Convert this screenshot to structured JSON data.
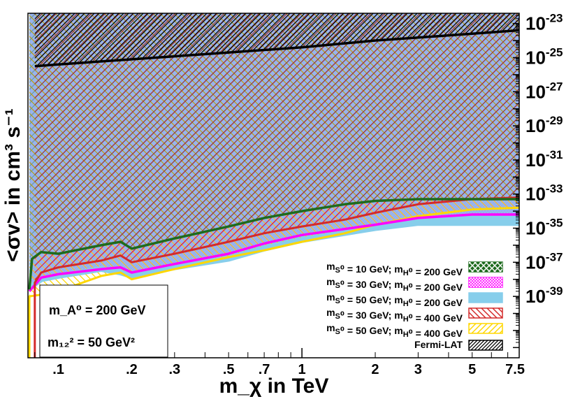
{
  "chart_data": {
    "type": "area",
    "title": "",
    "xlabel": "m_χ in TeV",
    "ylabel": "<σv> in cm³ s⁻¹",
    "x_scale": "log",
    "y_scale": "log",
    "xlim": [
      0.075,
      7.8
    ],
    "ylim": [
      -42.6,
      -22.4
    ],
    "x_ticks": [
      {
        "value": 0.1,
        "label": ".1"
      },
      {
        "value": 0.2,
        "label": ".2"
      },
      {
        "value": 0.3,
        "label": ".3"
      },
      {
        "value": 0.5,
        "label": ".5"
      },
      {
        "value": 0.7,
        "label": ".7"
      },
      {
        "value": 1,
        "label": "1"
      },
      {
        "value": 2,
        "label": "2"
      },
      {
        "value": 3,
        "label": "3"
      },
      {
        "value": 5,
        "label": "5"
      },
      {
        "value": 7.5,
        "label": "7.5"
      }
    ],
    "y_ticks": [
      {
        "exp": -23,
        "base": "10",
        "sup": "-23"
      },
      {
        "exp": -25,
        "base": "10",
        "sup": "-25"
      },
      {
        "exp": -27,
        "base": "10",
        "sup": "-27"
      },
      {
        "exp": -29,
        "base": "10",
        "sup": "-29"
      },
      {
        "exp": -31,
        "base": "10",
        "sup": "-31"
      },
      {
        "exp": -33,
        "base": "10",
        "sup": "-33"
      },
      {
        "exp": -35,
        "base": "10",
        "sup": "-35"
      },
      {
        "exp": -37,
        "base": "10",
        "sup": "-37"
      },
      {
        "exp": -39,
        "base": "10",
        "sup": "-39"
      }
    ],
    "series": [
      {
        "name": "m_S⁰ = 10 GeV; m_H⁰ = 200 GeV",
        "color": "#1e6b1e",
        "fill": "crosshatch",
        "x": [
          0.076,
          0.078,
          0.085,
          0.1,
          0.15,
          0.18,
          0.2,
          0.3,
          0.5,
          0.7,
          1,
          1.5,
          2,
          3,
          5,
          7.8
        ],
        "y": [
          -38.6,
          -36.8,
          -36.4,
          -36.5,
          -36.0,
          -35.8,
          -36.2,
          -35.6,
          -34.9,
          -34.4,
          -34.0,
          -33.6,
          -33.4,
          -33.3,
          -33.3,
          -33.3
        ]
      },
      {
        "name": "m_S⁰ = 30 GeV; m_H⁰ = 200 GeV",
        "color": "#ff00ff",
        "fill": "dense-crosshatch",
        "x": [
          0.076,
          0.085,
          0.1,
          0.15,
          0.18,
          0.2,
          0.3,
          0.5,
          0.7,
          1,
          2,
          3,
          5,
          7.8
        ],
        "y": [
          -38.7,
          -37.9,
          -37.7,
          -37.4,
          -37.3,
          -37.6,
          -37.1,
          -36.5,
          -35.9,
          -35.4,
          -34.8,
          -34.4,
          -34.2,
          -34.2
        ]
      },
      {
        "name": "m_S⁰ = 50 GeV; m_H⁰ = 200 GeV",
        "color": "#87ceeb",
        "fill": "solid",
        "x": [
          0.076,
          0.085,
          0.1,
          0.15,
          0.18,
          0.2,
          0.3,
          0.5,
          0.7,
          1,
          2,
          3,
          5,
          7.8
        ],
        "y": [
          -38.5,
          -38.0,
          -37.8,
          -37.4,
          -37.6,
          -37.8,
          -37.3,
          -36.8,
          -36.2,
          -35.7,
          -35.0,
          -34.7,
          -34.7,
          -34.7
        ]
      },
      {
        "name": "m_S⁰ = 30 GeV; m_H⁰ = 400 GeV",
        "color": "#d42a2a",
        "fill": "hatch",
        "x": [
          0.08,
          0.08,
          0.085,
          0.1,
          0.15,
          0.18,
          0.2,
          0.3,
          0.5,
          0.7,
          1,
          1.5,
          2,
          3,
          5,
          7.8
        ],
        "y": [
          -42.6,
          -38.2,
          -37.6,
          -37.3,
          -36.9,
          -36.6,
          -37.0,
          -36.5,
          -35.8,
          -35.3,
          -34.9,
          -34.5,
          -34.1,
          -33.6,
          -33.3,
          -33.2
        ]
      },
      {
        "name": "m_S⁰ = 50 GeV; m_H⁰ = 400 GeV",
        "color": "#ffd700",
        "fill": "hatch",
        "x": [
          0.076,
          0.076,
          0.085,
          0.1,
          0.15,
          0.18,
          0.2,
          0.3,
          0.5,
          0.7,
          1,
          1.5,
          2,
          3,
          5,
          7.8
        ],
        "y": [
          -42.6,
          -39.0,
          -38.9,
          -38.7,
          -37.8,
          -37.6,
          -38.0,
          -37.4,
          -36.7,
          -36.3,
          -35.8,
          -35.3,
          -34.8,
          -34.3,
          -33.9,
          -33.8
        ]
      },
      {
        "name": "Fermi-LAT",
        "color": "#000000",
        "fill": "diagonal-hatch",
        "x": [
          0.08,
          0.1,
          0.2,
          0.5,
          1,
          2,
          5,
          7.8
        ],
        "y": [
          -25.5,
          -25.4,
          -25.1,
          -24.7,
          -24.4,
          -24.0,
          -23.6,
          -23.4
        ]
      }
    ]
  },
  "info_box": {
    "line1": "m_A⁰ = 200 GeV",
    "line2": "m₁₂² = 50 GeV²"
  }
}
